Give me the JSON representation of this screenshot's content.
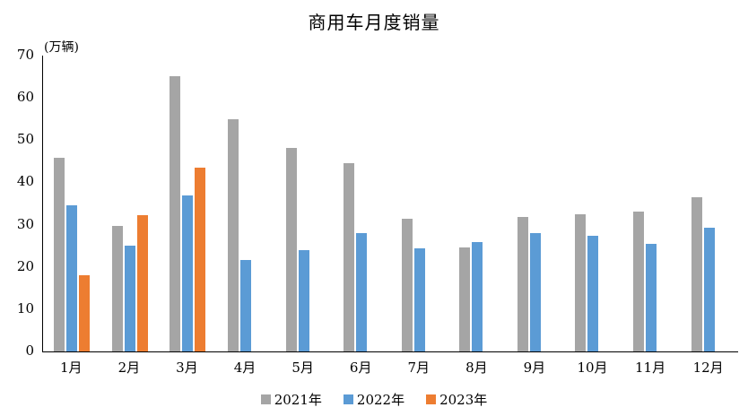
{
  "chart_data": {
    "type": "bar",
    "title": "商用车月度销量",
    "ylabel": "(万辆)",
    "xlabel": "",
    "categories": [
      "1月",
      "2月",
      "3月",
      "4月",
      "5月",
      "6月",
      "7月",
      "8月",
      "9月",
      "10月",
      "11月",
      "12月"
    ],
    "series": [
      {
        "name": "2021年",
        "color": "#A5A5A5",
        "values": [
          45.9,
          29.8,
          65.2,
          55.0,
          48.1,
          44.5,
          31.3,
          24.7,
          31.8,
          32.5,
          33.0,
          36.4
        ]
      },
      {
        "name": "2022年",
        "color": "#5B9BD5",
        "values": [
          34.5,
          25.0,
          37.0,
          21.6,
          24.0,
          28.1,
          24.5,
          25.9,
          28.0,
          27.3,
          25.5,
          29.3
        ]
      },
      {
        "name": "2023年",
        "color": "#ED7D31",
        "values": [
          18.0,
          32.3,
          43.5,
          null,
          null,
          null,
          null,
          null,
          null,
          null,
          null,
          null
        ]
      }
    ],
    "ylim": [
      0,
      70
    ],
    "yticks": [
      0,
      10,
      20,
      30,
      40,
      50,
      60,
      70
    ],
    "grid": false,
    "legend_position": "bottom",
    "axis_color": "#000000",
    "text_color": "#000000",
    "background_color": "#FFFFFF"
  }
}
